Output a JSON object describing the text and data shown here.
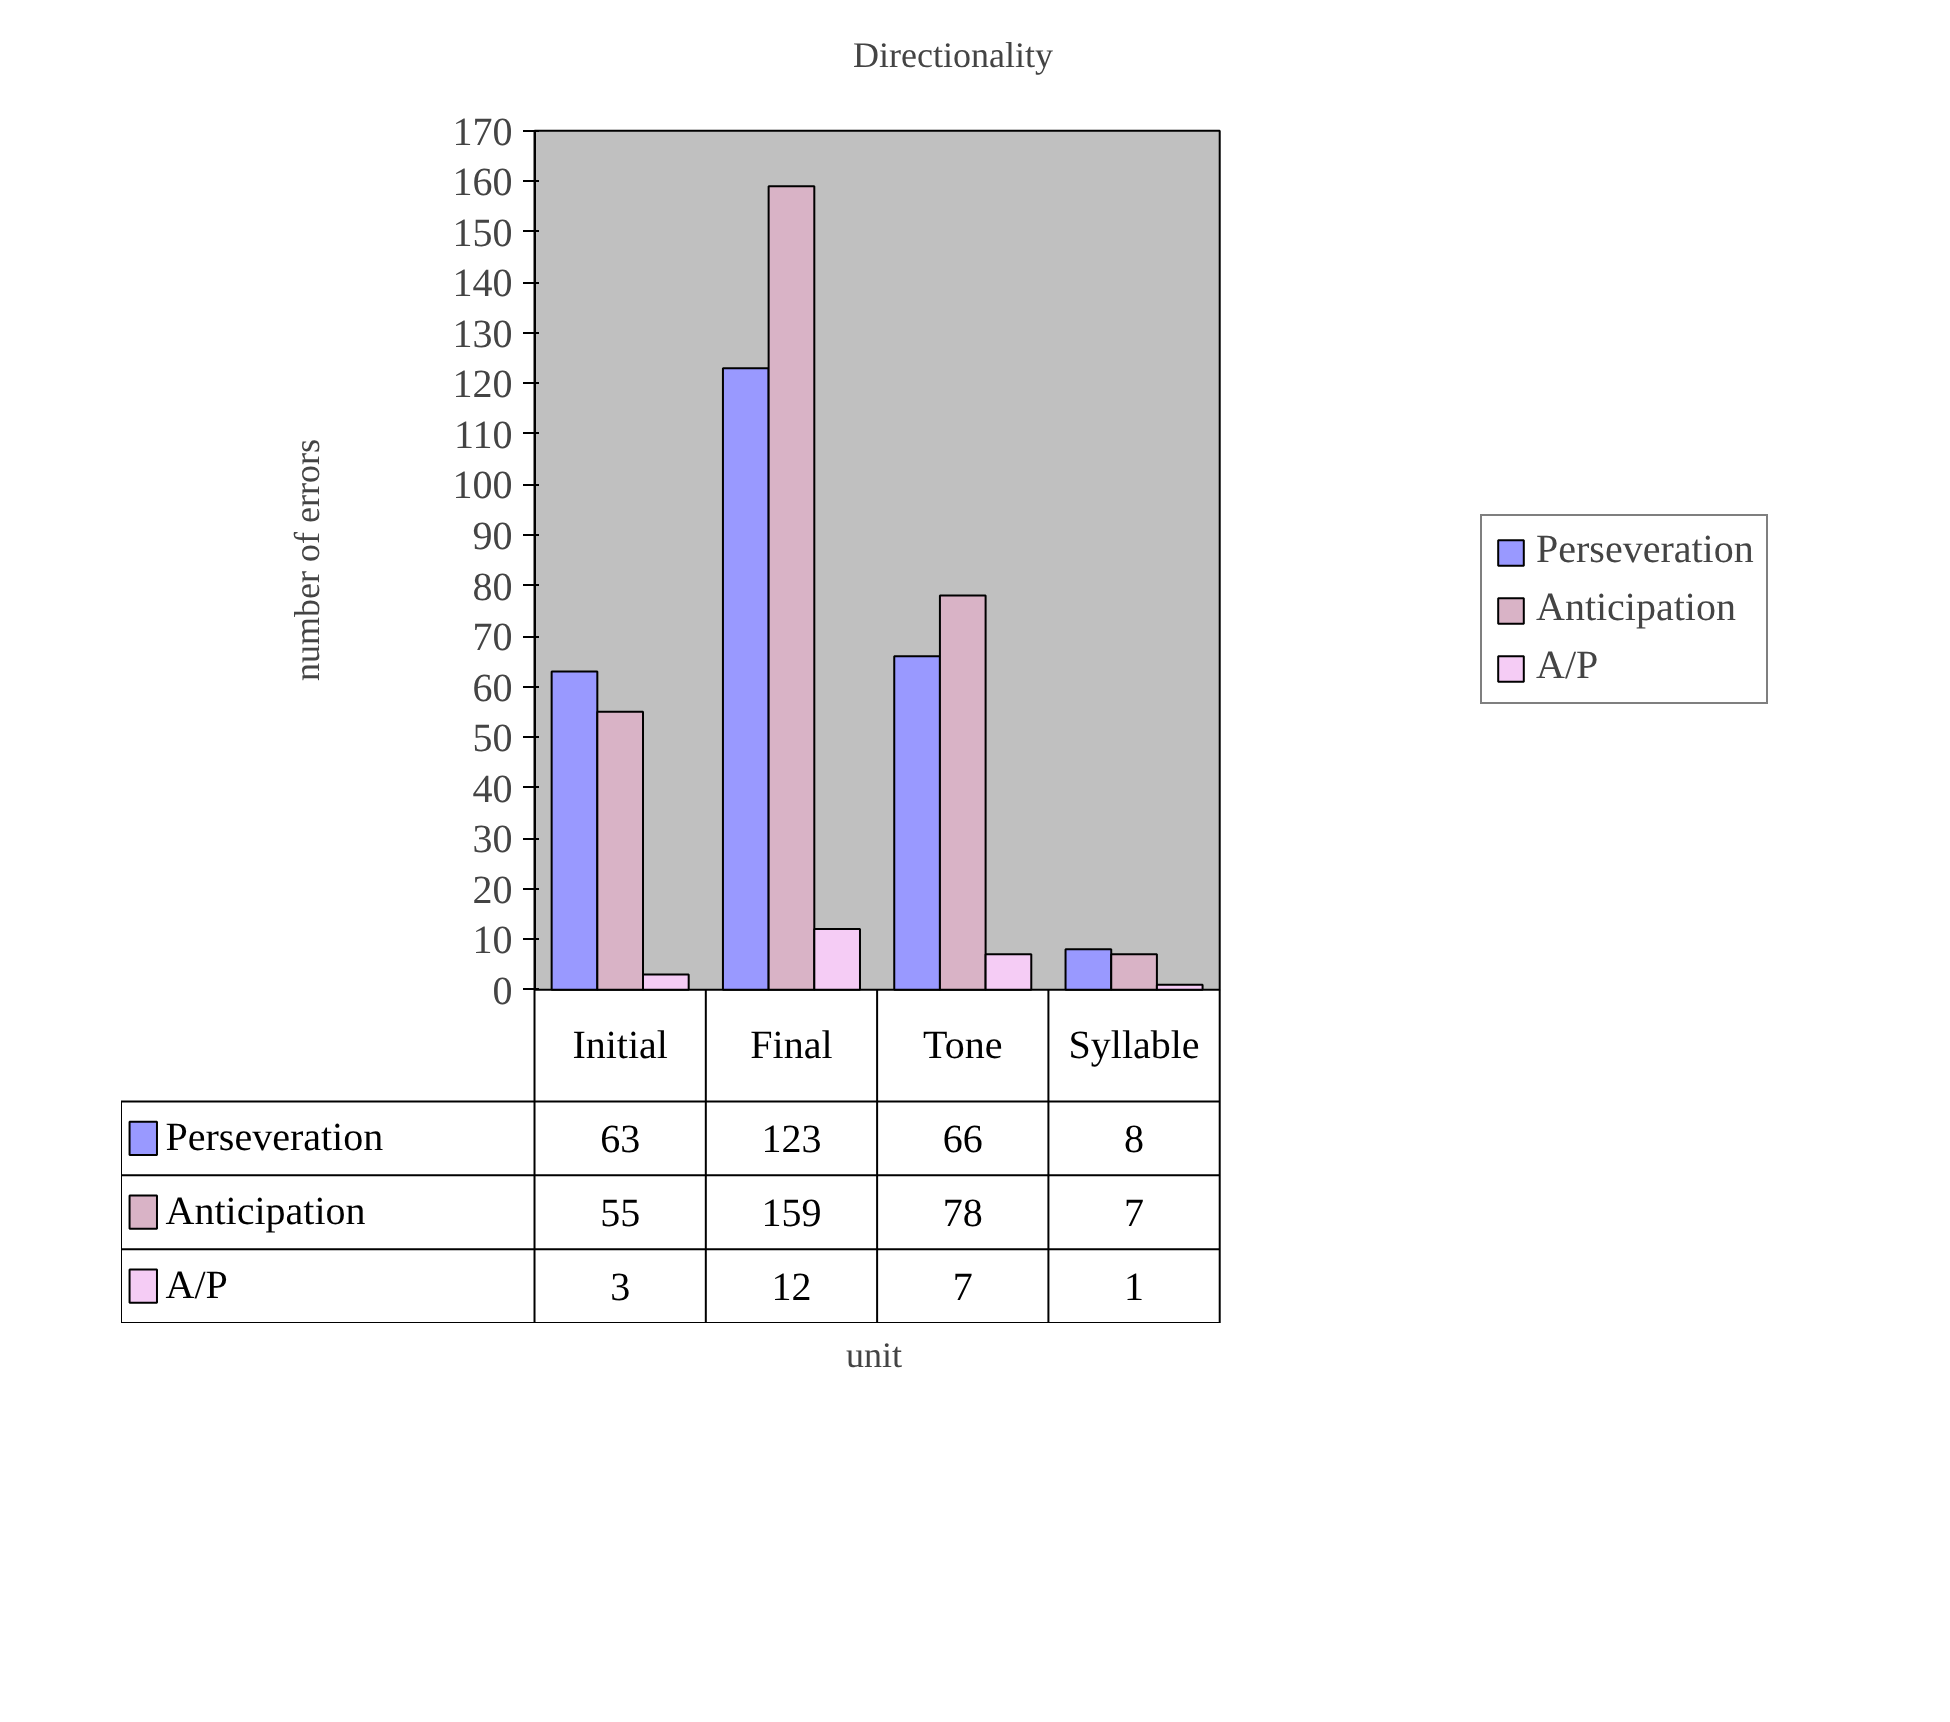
{
  "chart_data": {
    "type": "bar",
    "title": "Directionality",
    "annotations": [
      "unit"
    ],
    "ylabel": "number of errors",
    "categories": [
      "Initial",
      "Final",
      "Tone",
      "Syllable"
    ],
    "series": [
      {
        "name": "Perseveration",
        "color": "#9999ff",
        "values": [
          63,
          123,
          66,
          8
        ]
      },
      {
        "name": "Anticipation",
        "color": "#d9b3c6",
        "values": [
          55,
          159,
          78,
          7
        ]
      },
      {
        "name": "A/P",
        "color": "#f5ccf5",
        "values": [
          3,
          12,
          7,
          1
        ]
      }
    ],
    "ylim": [
      0,
      170
    ],
    "yticks": [
      0,
      10,
      20,
      30,
      40,
      50,
      60,
      70,
      80,
      90,
      100,
      110,
      120,
      130,
      140,
      150,
      160,
      170
    ],
    "grid": false,
    "legend": "right",
    "data_labels": true
  }
}
